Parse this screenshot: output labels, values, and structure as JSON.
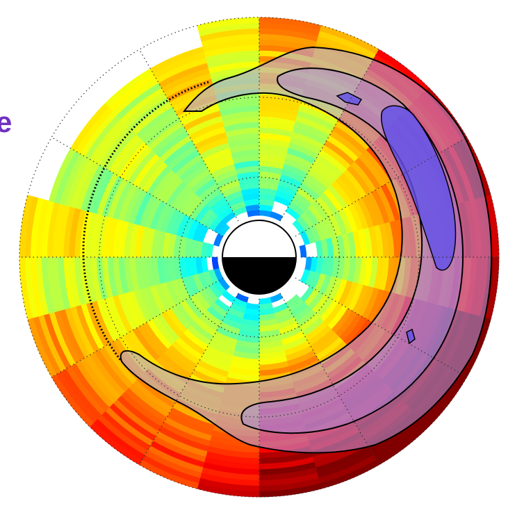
{
  "label": {
    "text": "e"
  }
}
